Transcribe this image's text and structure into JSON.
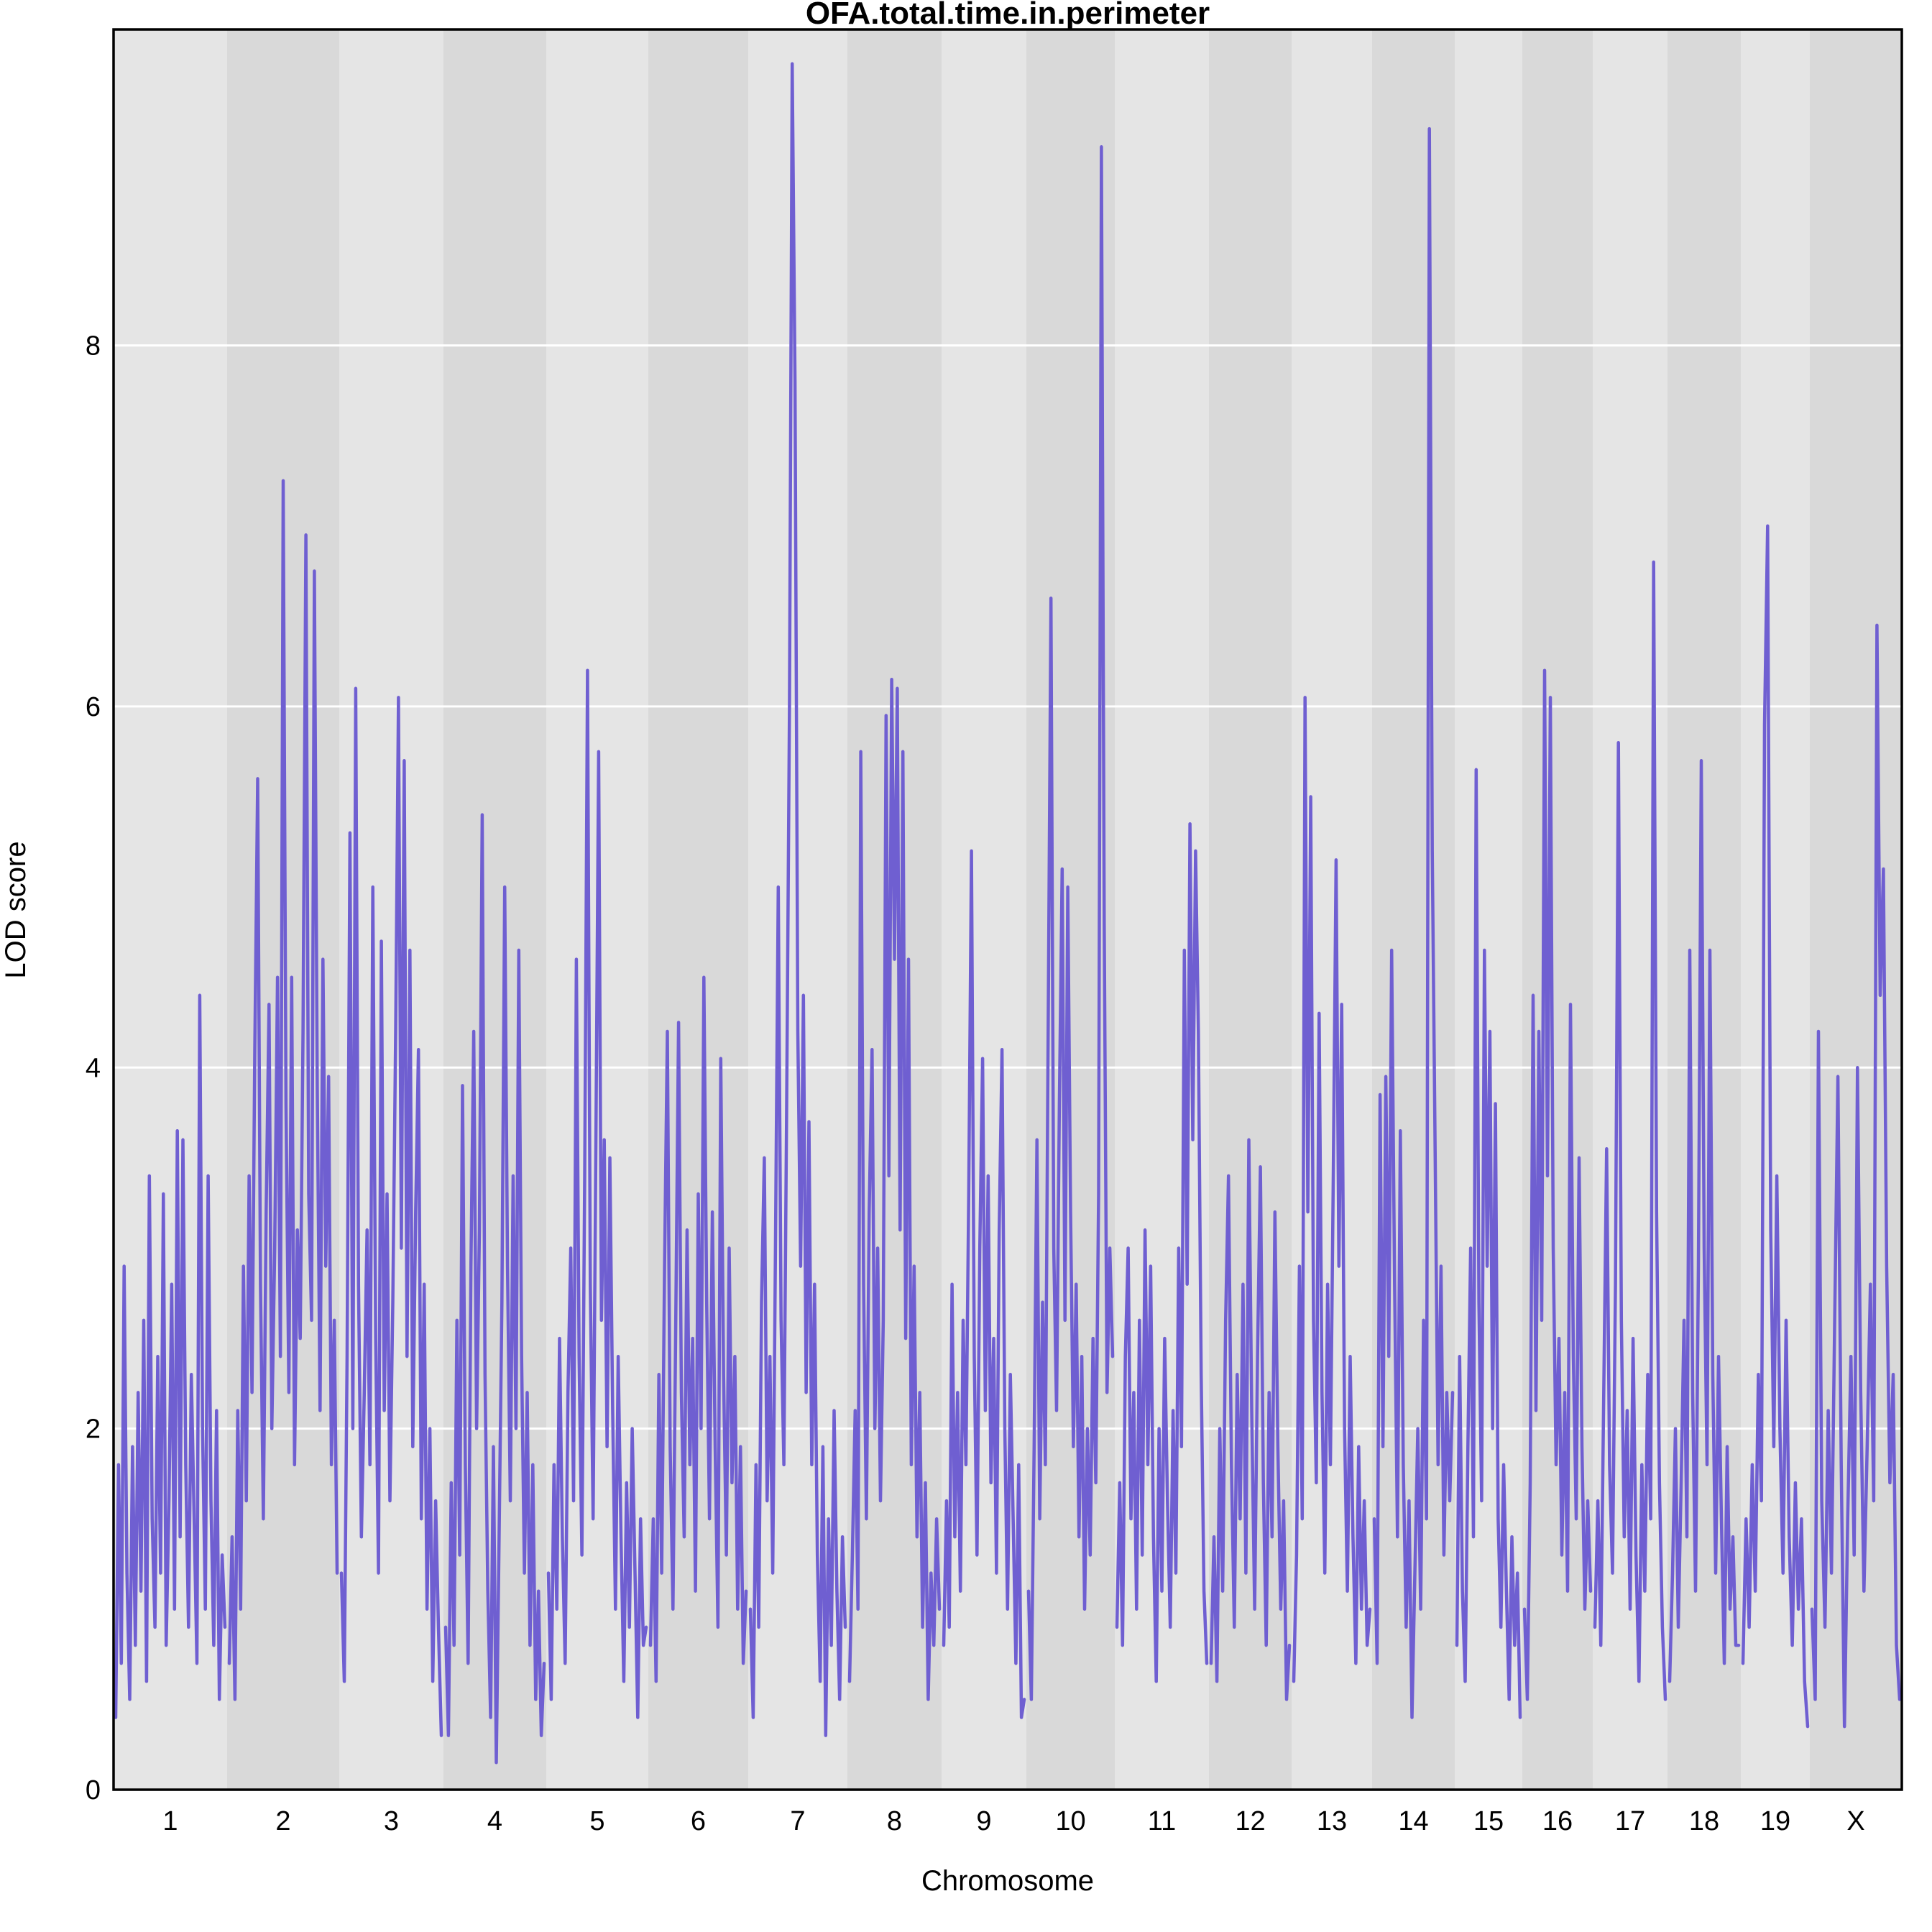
{
  "chart_data": {
    "type": "line",
    "title": "OFA.total.time.in.perimeter",
    "xlabel": "Chromosome",
    "ylabel": "LOD score",
    "ylim": [
      0,
      9.75
    ],
    "yticks": [
      0,
      2,
      4,
      6,
      8
    ],
    "grid": "horizontal-white",
    "legend": "none",
    "line_color": "#6f5fd1",
    "band_color_light": "#e5e5e5",
    "band_color_dark": "#d9d9d9",
    "grid_color": "#ffffff",
    "border_color": "#000000",
    "chromosomes": [
      {
        "name": "1",
        "rel_width": 158,
        "lod": [
          0.4,
          1.8,
          0.7,
          2.9,
          1.2,
          0.5,
          1.9,
          0.8,
          2.2,
          1.1,
          2.6,
          0.6,
          3.4,
          1.5,
          0.9,
          2.4,
          1.2,
          3.3,
          0.8,
          1.6,
          2.8,
          1.0,
          3.65,
          1.4,
          3.6,
          1.8,
          0.9,
          2.3,
          1.5,
          0.7,
          4.4,
          2.0,
          1.0,
          3.4,
          1.6,
          0.8,
          2.1,
          0.5,
          1.3,
          0.9
        ]
      },
      {
        "name": "2",
        "rel_width": 156,
        "lod": [
          0.7,
          1.4,
          0.5,
          2.1,
          1.0,
          2.9,
          1.6,
          3.4,
          2.2,
          4.1,
          5.6,
          2.8,
          1.5,
          3.2,
          4.35,
          2.0,
          3.0,
          4.5,
          2.4,
          7.25,
          3.8,
          2.2,
          4.5,
          1.8,
          3.1,
          2.5,
          4.2,
          6.95,
          3.3,
          2.6,
          6.75,
          3.9,
          2.1,
          4.6,
          2.9,
          3.95,
          1.8,
          2.6,
          1.2
        ]
      },
      {
        "name": "3",
        "rel_width": 145,
        "lod": [
          1.2,
          0.6,
          2.4,
          5.3,
          2.0,
          6.1,
          2.8,
          1.4,
          2.2,
          3.1,
          1.8,
          5.0,
          2.5,
          1.2,
          4.7,
          2.1,
          3.3,
          1.6,
          2.7,
          4.2,
          6.05,
          3.0,
          5.7,
          2.4,
          4.65,
          1.9,
          3.2,
          4.1,
          1.5,
          2.8,
          1.0,
          2.0,
          0.6,
          1.6,
          0.9,
          0.3
        ]
      },
      {
        "name": "4",
        "rel_width": 143,
        "lod": [
          0.9,
          0.3,
          1.7,
          0.8,
          2.6,
          1.3,
          3.9,
          1.8,
          0.7,
          2.9,
          4.2,
          2.0,
          3.1,
          5.4,
          2.3,
          1.1,
          0.4,
          1.9,
          0.15,
          1.4,
          2.7,
          5.0,
          2.9,
          1.6,
          3.4,
          2.0,
          4.65,
          2.4,
          1.2,
          2.2,
          0.8,
          1.8,
          0.5,
          1.1,
          0.3,
          0.7
        ]
      },
      {
        "name": "5",
        "rel_width": 142,
        "lod": [
          1.2,
          0.5,
          1.8,
          1.0,
          2.5,
          1.4,
          0.7,
          2.2,
          3.0,
          1.6,
          4.6,
          2.4,
          1.3,
          3.4,
          6.2,
          2.8,
          1.5,
          3.6,
          5.75,
          2.6,
          3.6,
          1.9,
          3.5,
          2.1,
          1.0,
          2.4,
          1.4,
          0.6,
          1.7,
          0.9,
          2.0,
          1.2,
          0.4,
          1.5,
          0.8,
          0.9
        ]
      },
      {
        "name": "6",
        "rel_width": 139,
        "lod": [
          0.8,
          1.5,
          0.6,
          2.3,
          1.2,
          2.9,
          4.2,
          1.9,
          1.0,
          2.6,
          4.25,
          2.2,
          1.4,
          3.1,
          1.8,
          2.5,
          1.1,
          3.3,
          2.0,
          4.5,
          2.7,
          1.5,
          3.2,
          1.9,
          0.9,
          4.05,
          2.3,
          1.3,
          3.0,
          1.7,
          2.4,
          1.0,
          1.9,
          0.7,
          1.1
        ]
      },
      {
        "name": "7",
        "rel_width": 138,
        "lod": [
          1.0,
          0.4,
          1.8,
          0.9,
          2.7,
          3.5,
          1.6,
          2.4,
          1.2,
          3.0,
          5.0,
          2.6,
          1.8,
          3.8,
          6.0,
          9.56,
          7.8,
          4.2,
          2.9,
          4.4,
          2.2,
          3.7,
          1.8,
          2.8,
          1.3,
          0.6,
          1.9,
          0.3,
          1.5,
          0.8,
          2.1,
          1.1,
          0.5,
          1.4,
          0.9
        ]
      },
      {
        "name": "8",
        "rel_width": 131,
        "lod": [
          0.6,
          1.3,
          2.1,
          1.0,
          5.75,
          2.8,
          1.5,
          3.2,
          4.1,
          2.0,
          3.0,
          1.6,
          2.6,
          5.95,
          3.4,
          6.15,
          4.6,
          6.1,
          3.1,
          5.75,
          2.5,
          4.6,
          1.8,
          2.9,
          1.4,
          2.2,
          0.9,
          1.7,
          0.5,
          1.2,
          0.8,
          1.5,
          1.0
        ]
      },
      {
        "name": "9",
        "rel_width": 118,
        "lod": [
          0.8,
          1.6,
          0.9,
          2.8,
          1.4,
          2.2,
          1.1,
          2.6,
          1.8,
          3.3,
          5.2,
          2.4,
          1.3,
          3.0,
          4.05,
          2.1,
          3.4,
          1.7,
          2.5,
          1.2,
          3.1,
          4.1,
          2.0,
          1.0,
          2.3,
          1.5,
          0.7,
          1.8,
          0.4,
          0.5
        ]
      },
      {
        "name": "10",
        "rel_width": 123,
        "lod": [
          1.1,
          0.5,
          1.9,
          3.6,
          1.5,
          2.7,
          1.8,
          4.2,
          6.6,
          3.0,
          2.1,
          3.8,
          5.1,
          2.6,
          5.0,
          3.2,
          1.9,
          2.8,
          1.4,
          2.4,
          1.0,
          2.0,
          1.3,
          2.5,
          1.7,
          3.3,
          9.1,
          4.8,
          2.2,
          3.0,
          2.4
        ]
      },
      {
        "name": "11",
        "rel_width": 131,
        "lod": [
          0.9,
          1.7,
          0.8,
          2.4,
          3.0,
          1.5,
          2.2,
          1.0,
          2.6,
          1.3,
          3.1,
          1.8,
          2.9,
          1.4,
          0.6,
          2.0,
          1.1,
          2.5,
          1.6,
          0.9,
          2.1,
          1.2,
          3.0,
          1.9,
          4.65,
          2.8,
          5.35,
          3.6,
          5.2,
          4.2,
          2.3,
          1.1,
          0.7
        ]
      },
      {
        "name": "12",
        "rel_width": 115,
        "lod": [
          0.7,
          1.4,
          0.6,
          2.0,
          1.1,
          2.6,
          3.4,
          1.8,
          0.9,
          2.3,
          1.5,
          2.8,
          1.2,
          3.6,
          2.1,
          1.0,
          2.4,
          3.45,
          1.7,
          0.8,
          2.2,
          1.4,
          3.2,
          1.9,
          1.0,
          1.6,
          0.5,
          0.8
        ]
      },
      {
        "name": "13",
        "rel_width": 112,
        "lod": [
          0.6,
          1.3,
          2.9,
          1.5,
          6.05,
          3.2,
          5.5,
          2.6,
          1.7,
          4.3,
          2.2,
          1.2,
          2.8,
          1.8,
          3.4,
          5.15,
          2.9,
          4.35,
          2.0,
          1.1,
          2.4,
          1.4,
          0.7,
          1.9,
          1.0,
          1.6,
          0.8,
          1.0
        ]
      },
      {
        "name": "14",
        "rel_width": 115,
        "lod": [
          1.5,
          0.7,
          3.85,
          1.9,
          3.95,
          2.4,
          4.65,
          2.8,
          1.4,
          3.65,
          1.8,
          0.9,
          1.6,
          0.4,
          1.2,
          2.0,
          1.0,
          2.6,
          1.5,
          9.2,
          5.2,
          3.5,
          1.8,
          2.9,
          1.3,
          2.2,
          1.6,
          2.2
        ]
      },
      {
        "name": "15",
        "rel_width": 94,
        "lod": [
          0.8,
          2.4,
          1.1,
          0.6,
          1.9,
          3.0,
          1.4,
          5.65,
          2.7,
          1.6,
          4.65,
          2.9,
          4.2,
          2.0,
          3.8,
          1.5,
          0.9,
          1.8,
          1.1,
          0.5,
          1.4,
          0.8,
          1.2,
          0.4
        ]
      },
      {
        "name": "16",
        "rel_width": 98,
        "lod": [
          1.0,
          0.5,
          1.7,
          4.4,
          2.1,
          4.2,
          2.6,
          6.2,
          3.4,
          6.05,
          3.0,
          1.8,
          2.5,
          1.3,
          2.2,
          1.1,
          4.35,
          2.4,
          1.5,
          3.5,
          1.9,
          1.0,
          1.6,
          1.1
        ]
      },
      {
        "name": "17",
        "rel_width": 104,
        "lod": [
          0.9,
          1.6,
          0.8,
          2.2,
          3.55,
          1.8,
          1.2,
          2.8,
          5.8,
          2.6,
          1.4,
          2.1,
          1.0,
          2.5,
          1.3,
          0.6,
          1.8,
          1.1,
          2.3,
          1.5,
          6.8,
          3.2,
          1.7,
          0.9,
          0.5
        ]
      },
      {
        "name": "18",
        "rel_width": 102,
        "lod": [
          0.6,
          1.2,
          2.0,
          0.9,
          1.7,
          2.6,
          1.4,
          4.65,
          2.2,
          1.1,
          2.9,
          5.7,
          3.0,
          1.8,
          4.65,
          2.3,
          1.2,
          2.4,
          1.5,
          0.7,
          1.9,
          1.0,
          1.4,
          0.8,
          0.8
        ]
      },
      {
        "name": "19",
        "rel_width": 96,
        "lod": [
          0.7,
          1.5,
          0.9,
          1.8,
          1.1,
          2.3,
          1.6,
          5.9,
          7.0,
          3.1,
          1.9,
          3.4,
          2.0,
          1.2,
          2.6,
          1.4,
          0.8,
          1.7,
          1.0,
          1.5,
          0.6,
          0.35
        ]
      },
      {
        "name": "X",
        "rel_width": 128,
        "lod": [
          1.0,
          0.5,
          4.2,
          1.6,
          0.9,
          2.1,
          1.2,
          2.6,
          3.95,
          1.8,
          0.35,
          1.5,
          2.4,
          1.3,
          4.0,
          2.2,
          1.1,
          1.9,
          2.8,
          1.6,
          6.45,
          4.4,
          5.1,
          2.9,
          1.7,
          2.3,
          0.8,
          0.5
        ]
      }
    ]
  }
}
